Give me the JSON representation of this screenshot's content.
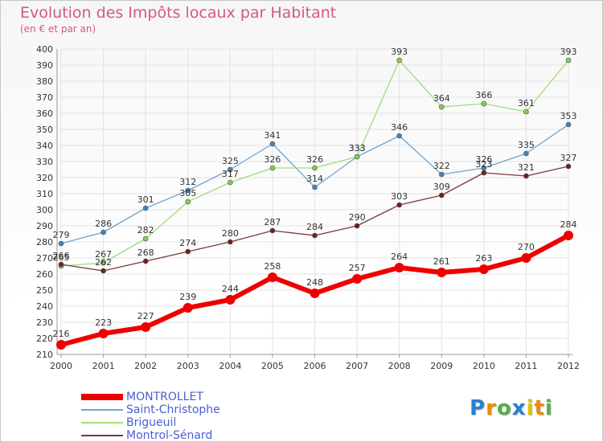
{
  "header": {
    "title": "Evolution des Impôts locaux par Habitant",
    "subtitle": "(en € et par an)"
  },
  "logo": {
    "text": "Proxiti",
    "letters": [
      "P",
      "r",
      "o",
      "x",
      "i",
      "t",
      "i"
    ],
    "letter_colors": [
      "#2a7fd4",
      "#f08a00",
      "#56b04a",
      "#2a7fd4",
      "#d8c800",
      "#f08a00",
      "#56b04a"
    ]
  },
  "chart_data": {
    "type": "line",
    "title": "Evolution des Impôts locaux par Habitant",
    "subtitle": "(en € et par an)",
    "xlabel": "",
    "ylabel": "",
    "categories": [
      "2000",
      "2001",
      "2002",
      "2003",
      "2004",
      "2005",
      "2006",
      "2007",
      "2008",
      "2009",
      "2010",
      "2011",
      "2012"
    ],
    "ylim": [
      210,
      400
    ],
    "yticks": [
      210,
      220,
      230,
      240,
      250,
      260,
      270,
      280,
      290,
      300,
      310,
      320,
      330,
      340,
      350,
      360,
      370,
      380,
      390,
      400
    ],
    "grid": true,
    "legend_position": "bottom-left",
    "series": [
      {
        "name": "Saint-Christophe",
        "color": "#6fa4cf",
        "marker_color": "#3e86c6",
        "values": [
          279,
          286,
          301,
          312,
          325,
          341,
          314,
          333,
          346,
          322,
          326,
          335,
          353
        ]
      },
      {
        "name": "Brigueuil",
        "color": "#9fdc7a",
        "marker_color": "#7fcf50",
        "values": [
          265,
          267,
          282,
          305,
          317,
          326,
          326,
          333,
          393,
          364,
          366,
          361,
          393
        ]
      },
      {
        "name": "Montrol-Sénard",
        "color": "#7a3a3a",
        "marker_color": "#6a2020",
        "values": [
          266,
          262,
          268,
          274,
          280,
          287,
          284,
          290,
          303,
          309,
          323,
          321,
          327
        ]
      },
      {
        "name": "MONTROLLET",
        "color": "#ee0000",
        "marker_color": "#ee0000",
        "values": [
          216,
          223,
          227,
          239,
          244,
          258,
          248,
          257,
          264,
          261,
          263,
          270,
          284
        ]
      }
    ]
  }
}
